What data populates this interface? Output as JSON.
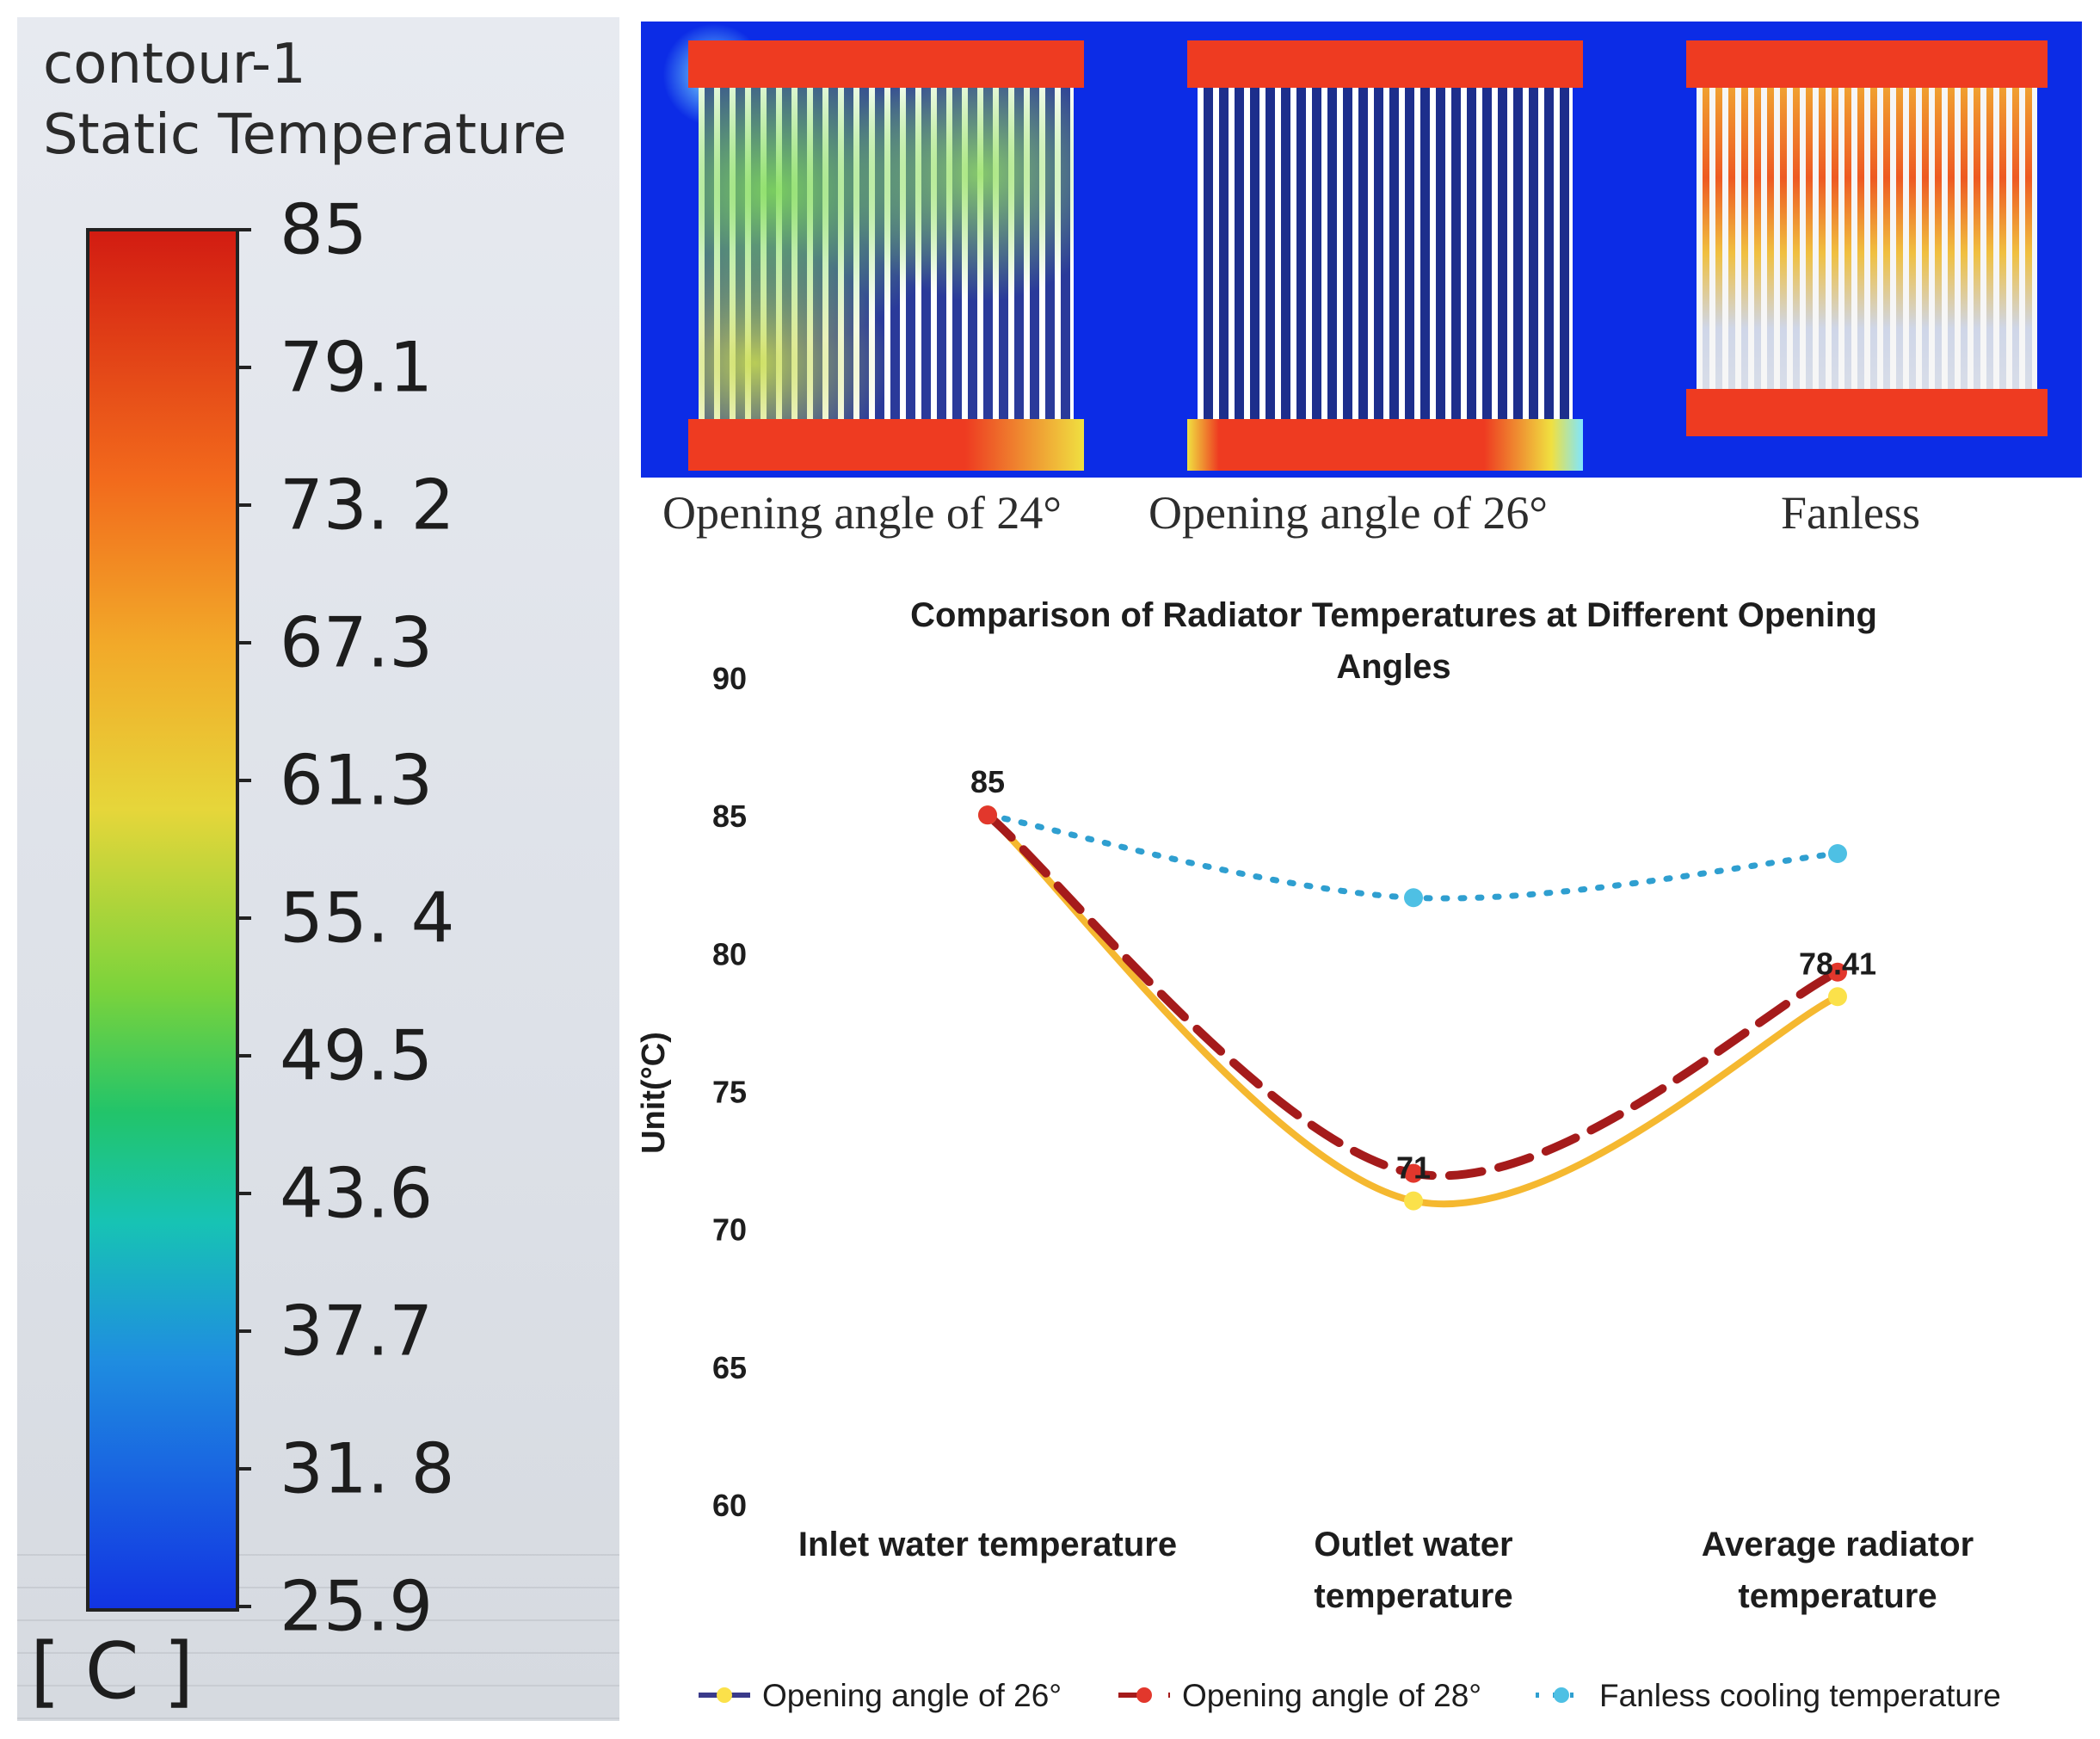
{
  "scale_legend": {
    "title_line1": "contour-1",
    "title_line2": "Static Temperature",
    "ticks": [
      "85",
      "79.1",
      "73. 2",
      "67.3",
      "61.3",
      "55. 4",
      "49.5",
      "43.6",
      "37.7",
      "31. 8",
      "25.9"
    ],
    "unit": "[ C ]"
  },
  "contour_panels": [
    {
      "caption": "Opening angle of 24°"
    },
    {
      "caption": "Opening angle of 26°"
    },
    {
      "caption": "Fanless"
    }
  ],
  "chart_data": {
    "type": "line",
    "title": "Comparison of Radiator Temperatures at Different Opening Angles",
    "title_line1": "Comparison of Radiator Temperatures at Different Opening",
    "title_line2": "Angles",
    "ylabel": "Unit(°C)",
    "ylim": [
      60,
      90
    ],
    "yticks": [
      "90",
      "85",
      "80",
      "75",
      "70",
      "65",
      "60"
    ],
    "categories": [
      "Inlet water temperature",
      "Outlet water temperature",
      "Average radiator temperature"
    ],
    "category_lines": [
      [
        "Inlet water temperature"
      ],
      [
        "Outlet water",
        "temperature"
      ],
      [
        "Average radiator",
        "temperature"
      ]
    ],
    "series": [
      {
        "name": "Opening angle of 26°",
        "values": [
          85,
          71,
          78.41
        ],
        "color": "#f5b830",
        "style": "solid"
      },
      {
        "name": "Opening angle of 28°",
        "values": [
          85,
          72,
          79.3
        ],
        "color": "#a51b1b",
        "style": "dashed"
      },
      {
        "name": "Fanless cooling temperature",
        "values": [
          85,
          82,
          83.6
        ],
        "color": "#2f9fd0",
        "style": "dotted"
      }
    ],
    "data_labels": [
      "85",
      "71",
      "78.41"
    ],
    "legend_position": "bottom"
  }
}
